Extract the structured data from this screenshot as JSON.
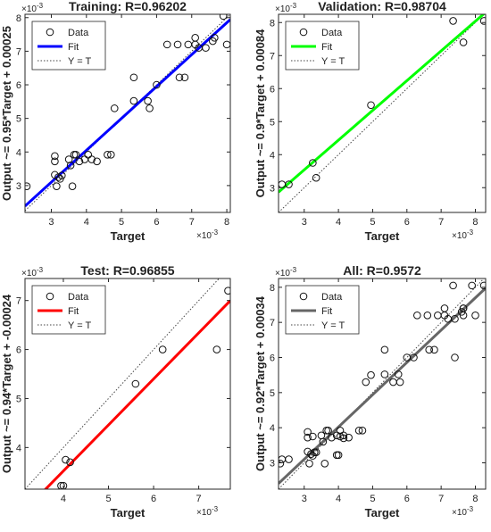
{
  "chart_data": [
    {
      "type": "scatter",
      "title": "Training: R=0.96202",
      "xlabel": "Target",
      "ylabel": "Output ~= 0.95*Target + 0.00025",
      "exponent_label": "×10",
      "exponent_power": "-3",
      "xlim": [
        2.25,
        8.1
      ],
      "ylim": [
        2.2,
        8.1
      ],
      "xticks": [
        "3",
        "4",
        "5",
        "6",
        "7",
        "8"
      ],
      "xtick_values": [
        3,
        4,
        5,
        6,
        7,
        8
      ],
      "yticks": [
        "3",
        "4",
        "5",
        "6",
        "7",
        "8"
      ],
      "ytick_values": [
        3,
        4,
        5,
        6,
        7,
        8
      ],
      "fit": {
        "slope": 0.95,
        "intercept": 0.25
      },
      "fit_color": "#0000ff",
      "legend": {
        "data": "Data",
        "fit": "Fit",
        "yt": "Y = T"
      },
      "points": [
        [
          2.3,
          2.98
        ],
        [
          3.1,
          3.88
        ],
        [
          3.1,
          3.72
        ],
        [
          3.1,
          3.32
        ],
        [
          3.15,
          2.98
        ],
        [
          3.2,
          3.25
        ],
        [
          3.25,
          3.2
        ],
        [
          3.3,
          3.3
        ],
        [
          3.5,
          3.78
        ],
        [
          3.55,
          3.6
        ],
        [
          3.6,
          2.98
        ],
        [
          3.65,
          3.92
        ],
        [
          3.7,
          3.92
        ],
        [
          3.8,
          3.72
        ],
        [
          3.95,
          3.78
        ],
        [
          4.05,
          3.92
        ],
        [
          4.15,
          3.78
        ],
        [
          4.3,
          3.72
        ],
        [
          4.6,
          3.92
        ],
        [
          4.7,
          3.92
        ],
        [
          4.8,
          5.3
        ],
        [
          5.35,
          5.52
        ],
        [
          5.35,
          6.22
        ],
        [
          5.75,
          5.52
        ],
        [
          5.8,
          5.3
        ],
        [
          6.0,
          6.0
        ],
        [
          6.3,
          7.2
        ],
        [
          6.6,
          7.2
        ],
        [
          6.65,
          6.22
        ],
        [
          6.8,
          6.22
        ],
        [
          6.9,
          7.2
        ],
        [
          7.1,
          7.4
        ],
        [
          7.1,
          7.2
        ],
        [
          7.2,
          7.1
        ],
        [
          7.4,
          7.1
        ],
        [
          7.6,
          7.3
        ],
        [
          7.65,
          7.4
        ],
        [
          7.9,
          8.05
        ],
        [
          8.0,
          7.2
        ]
      ]
    },
    {
      "type": "scatter",
      "title": "Validation: R=0.98704",
      "xlabel": "Target",
      "ylabel": "Output ~= 0.9*Target + 0.00084",
      "exponent_label": "×10",
      "exponent_power": "-3",
      "xlim": [
        2.25,
        8.3
      ],
      "ylim": [
        2.25,
        8.25
      ],
      "xticks": [
        "3",
        "4",
        "5",
        "6",
        "7",
        "8"
      ],
      "xtick_values": [
        3,
        4,
        5,
        6,
        7,
        8
      ],
      "yticks": [
        "3",
        "4",
        "5",
        "6",
        "7",
        "8"
      ],
      "ytick_values": [
        3,
        4,
        5,
        6,
        7,
        8
      ],
      "fit": {
        "slope": 0.9,
        "intercept": 0.84
      },
      "fit_color": "#00ff00",
      "legend": {
        "data": "Data",
        "fit": "Fit",
        "yt": "Y = T"
      },
      "points": [
        [
          2.35,
          3.1
        ],
        [
          2.55,
          3.1
        ],
        [
          3.25,
          3.75
        ],
        [
          3.35,
          3.3
        ],
        [
          4.95,
          5.5
        ],
        [
          7.35,
          8.05
        ],
        [
          7.65,
          7.4
        ],
        [
          8.25,
          8.05
        ]
      ]
    },
    {
      "type": "scatter",
      "title": "Test: R=0.96855",
      "xlabel": "Target",
      "ylabel": "Output ~= 0.94*Target + -0.00024",
      "exponent_label": "×10",
      "exponent_power": "-3",
      "xlim": [
        3.15,
        7.7
      ],
      "ylim": [
        3.15,
        7.45
      ],
      "xticks": [
        "4",
        "5",
        "6",
        "7"
      ],
      "xtick_values": [
        4,
        5,
        6,
        7
      ],
      "yticks": [
        "4",
        "5",
        "6",
        "7"
      ],
      "ytick_values": [
        4,
        5,
        6,
        7
      ],
      "fit": {
        "slope": 0.94,
        "intercept": -0.24
      },
      "fit_color": "#ff0000",
      "legend": {
        "data": "Data",
        "fit": "Fit",
        "yt": "Y = T"
      },
      "points": [
        [
          3.95,
          3.22
        ],
        [
          4.0,
          3.22
        ],
        [
          4.05,
          3.75
        ],
        [
          4.15,
          3.7
        ],
        [
          5.6,
          5.3
        ],
        [
          6.2,
          6.0
        ],
        [
          7.4,
          6.0
        ],
        [
          7.65,
          7.2
        ]
      ]
    },
    {
      "type": "scatter",
      "title": "All: R=0.9572",
      "xlabel": "Target",
      "ylabel": "Output ~= 0.92*Target + 0.00034",
      "exponent_label": "×10",
      "exponent_power": "-3",
      "xlim": [
        2.25,
        8.3
      ],
      "ylim": [
        2.25,
        8.25
      ],
      "xticks": [
        "3",
        "4",
        "5",
        "6",
        "7",
        "8"
      ],
      "xtick_values": [
        3,
        4,
        5,
        6,
        7,
        8
      ],
      "yticks": [
        "3",
        "4",
        "5",
        "6",
        "7",
        "8"
      ],
      "ytick_values": [
        3,
        4,
        5,
        6,
        7,
        8
      ],
      "fit": {
        "slope": 0.92,
        "intercept": 0.34
      },
      "fit_color": "#666666",
      "legend": {
        "data": "Data",
        "fit": "Fit",
        "yt": "Y = T"
      },
      "points": [
        [
          2.3,
          2.98
        ],
        [
          2.35,
          3.1
        ],
        [
          2.55,
          3.1
        ],
        [
          3.1,
          3.88
        ],
        [
          3.1,
          3.72
        ],
        [
          3.1,
          3.32
        ],
        [
          3.15,
          2.98
        ],
        [
          3.2,
          3.25
        ],
        [
          3.25,
          3.2
        ],
        [
          3.25,
          3.75
        ],
        [
          3.3,
          3.3
        ],
        [
          3.35,
          3.3
        ],
        [
          3.5,
          3.78
        ],
        [
          3.55,
          3.6
        ],
        [
          3.6,
          2.98
        ],
        [
          3.65,
          3.92
        ],
        [
          3.7,
          3.92
        ],
        [
          3.8,
          3.72
        ],
        [
          3.95,
          3.22
        ],
        [
          3.95,
          3.78
        ],
        [
          4.0,
          3.22
        ],
        [
          4.05,
          3.92
        ],
        [
          4.05,
          3.75
        ],
        [
          4.15,
          3.78
        ],
        [
          4.15,
          3.7
        ],
        [
          4.3,
          3.72
        ],
        [
          4.6,
          3.92
        ],
        [
          4.7,
          3.92
        ],
        [
          4.8,
          5.3
        ],
        [
          4.95,
          5.5
        ],
        [
          5.35,
          5.52
        ],
        [
          5.35,
          6.22
        ],
        [
          5.6,
          5.3
        ],
        [
          5.75,
          5.52
        ],
        [
          5.8,
          5.3
        ],
        [
          6.0,
          6.0
        ],
        [
          6.2,
          6.0
        ],
        [
          6.3,
          7.2
        ],
        [
          6.6,
          7.2
        ],
        [
          6.65,
          6.22
        ],
        [
          6.8,
          6.22
        ],
        [
          6.9,
          7.2
        ],
        [
          7.1,
          7.4
        ],
        [
          7.1,
          7.2
        ],
        [
          7.2,
          7.1
        ],
        [
          7.35,
          8.05
        ],
        [
          7.4,
          7.1
        ],
        [
          7.4,
          6.0
        ],
        [
          7.6,
          7.3
        ],
        [
          7.65,
          7.4
        ],
        [
          7.65,
          7.4
        ],
        [
          7.65,
          7.2
        ],
        [
          7.9,
          8.05
        ],
        [
          8.0,
          7.2
        ],
        [
          8.25,
          8.05
        ]
      ]
    }
  ]
}
